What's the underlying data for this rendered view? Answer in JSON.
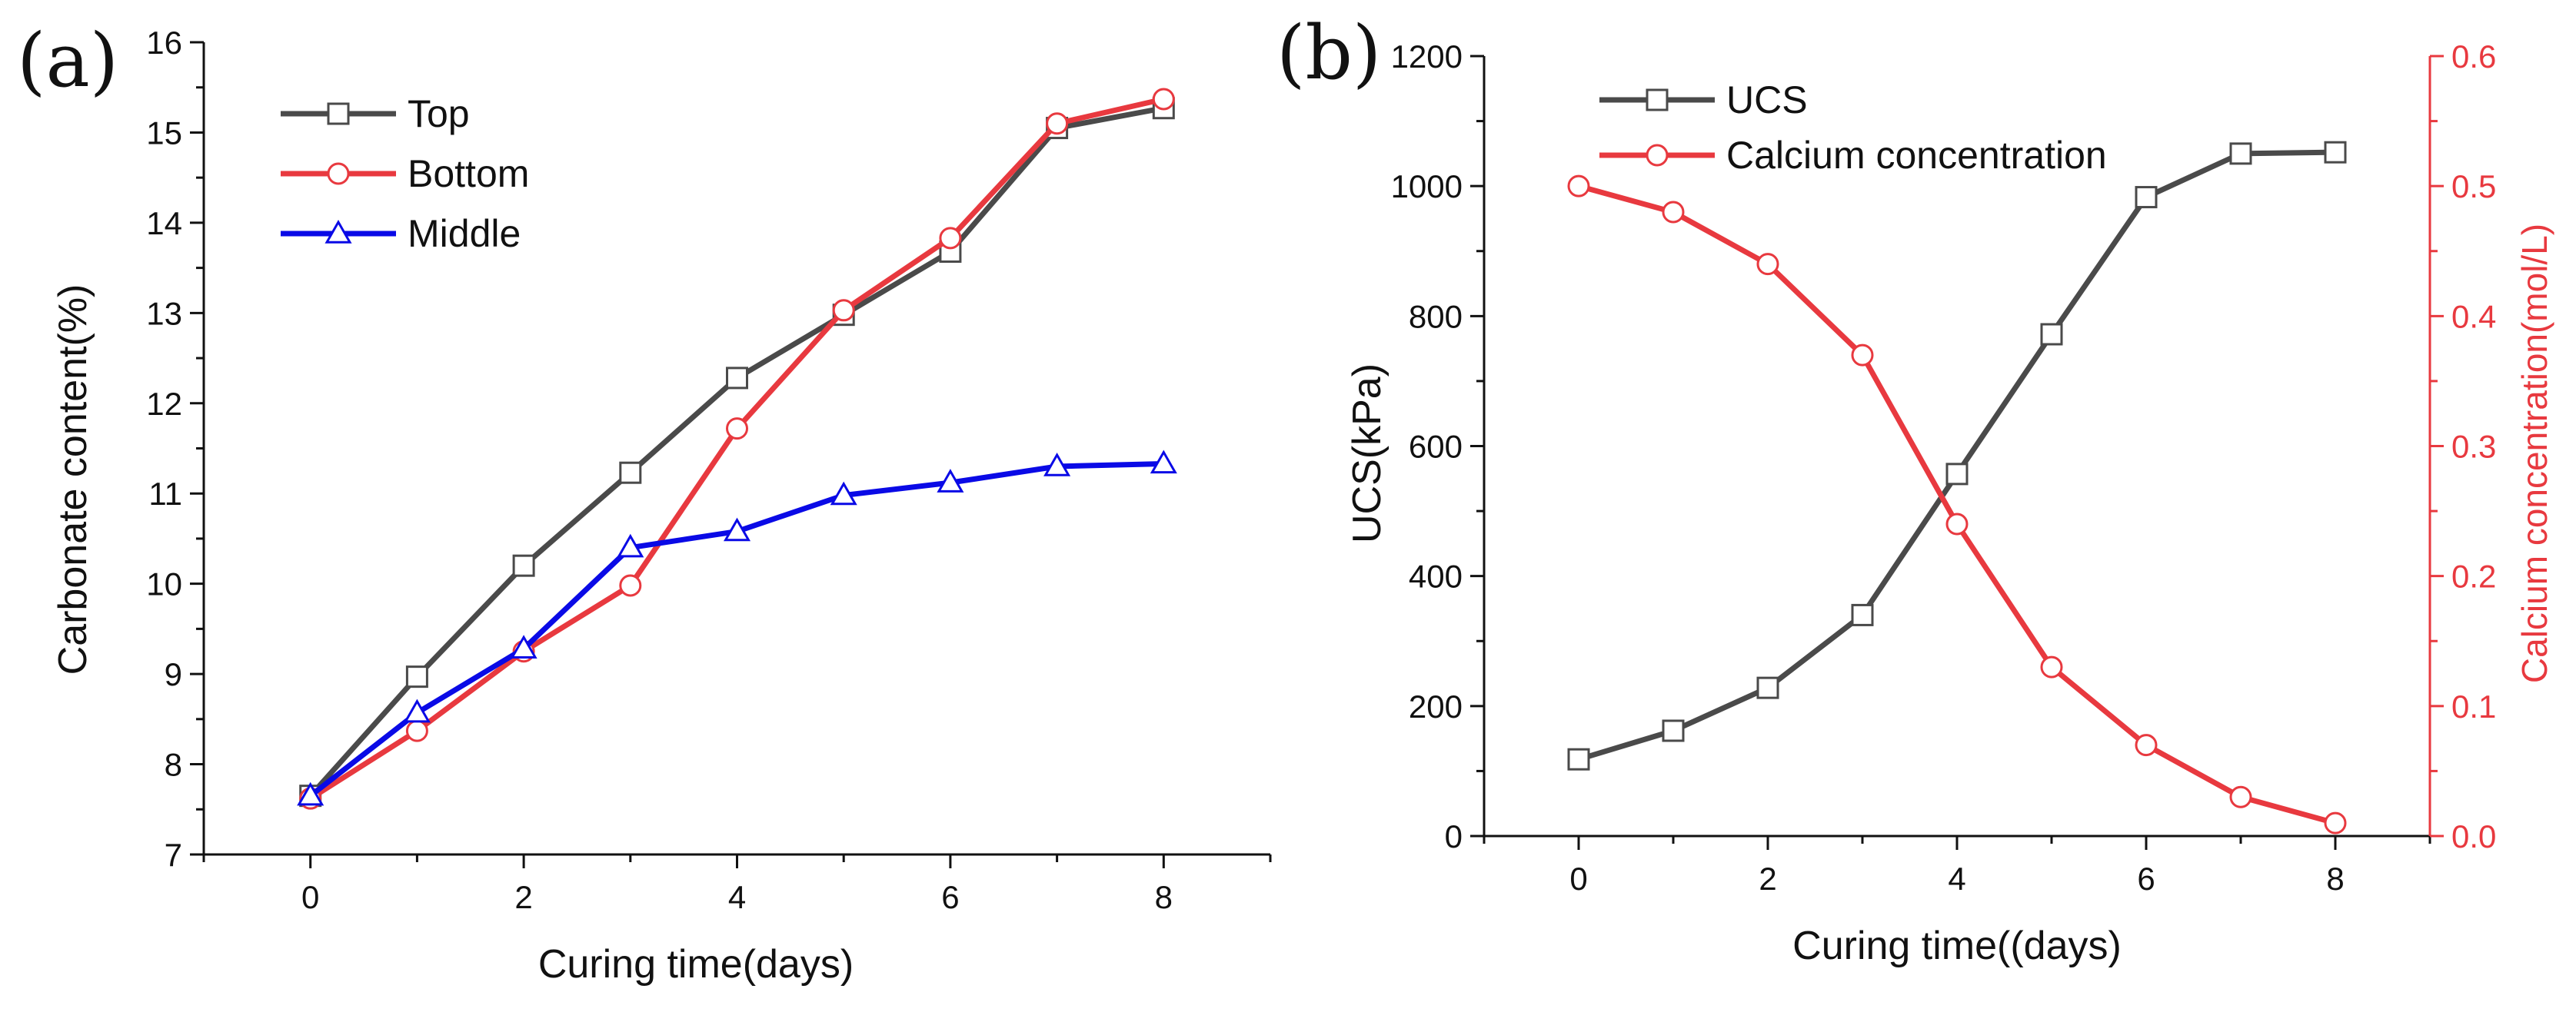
{
  "colors": {
    "top": "#4a4a4a",
    "bottom": "#e8393f",
    "middle": "#0a0ae6",
    "ucs": "#4a4a4a",
    "calcium": "#e8393f",
    "axis": "#111111",
    "right_axis": "#e8393f"
  },
  "chart_data": [
    {
      "id": "a",
      "panel_label": "(a)",
      "type": "line",
      "xlabel": "Curing time(days)",
      "ylabel": "Carbonate content(%)",
      "xlim": [
        -1,
        9
      ],
      "ylim": [
        7,
        16
      ],
      "xticks": [
        0,
        2,
        4,
        6,
        8
      ],
      "yticks": [
        7,
        8,
        9,
        10,
        11,
        12,
        13,
        14,
        15,
        16
      ],
      "legend_position": "top-left",
      "series": [
        {
          "name": "Top",
          "marker": "square",
          "color_key": "top",
          "x": [
            0,
            1,
            2,
            3,
            4,
            5,
            6,
            7,
            8
          ],
          "values": [
            7.65,
            8.97,
            10.2,
            11.23,
            12.28,
            12.98,
            13.68,
            15.05,
            15.27
          ]
        },
        {
          "name": "Bottom",
          "marker": "circle",
          "color_key": "bottom",
          "x": [
            0,
            1,
            2,
            3,
            4,
            5,
            6,
            7,
            8
          ],
          "values": [
            7.62,
            8.37,
            9.25,
            9.98,
            11.72,
            13.03,
            13.83,
            15.1,
            15.37
          ]
        },
        {
          "name": "Middle",
          "marker": "triangle",
          "color_key": "middle",
          "x": [
            0,
            1,
            2,
            3,
            4,
            5,
            6,
            7,
            8
          ],
          "values": [
            7.65,
            8.57,
            9.28,
            10.4,
            10.58,
            10.98,
            11.12,
            11.3,
            11.33
          ]
        }
      ]
    },
    {
      "id": "b",
      "panel_label": "(b)",
      "type": "line",
      "xlabel": "Curing time((days)",
      "ylabel": "UCS(kPa)",
      "y2label": "Calcium concentration(mol/L)",
      "xlim": [
        -1,
        9
      ],
      "ylim": [
        0,
        1200
      ],
      "y2lim": [
        0,
        0.6
      ],
      "xticks": [
        0,
        2,
        4,
        6,
        8
      ],
      "yticks": [
        0,
        200,
        400,
        600,
        800,
        1000,
        1200
      ],
      "y2ticks": [
        0.0,
        0.1,
        0.2,
        0.3,
        0.4,
        0.5,
        0.6
      ],
      "y2tick_labels": [
        "0.0",
        "0.1",
        "0.2",
        "0.3",
        "0.4",
        "0.5",
        "0.6"
      ],
      "legend_position": "top-left",
      "series": [
        {
          "name": "UCS",
          "marker": "square",
          "axis": "left",
          "color_key": "ucs",
          "x": [
            0,
            1,
            2,
            3,
            4,
            5,
            6,
            7,
            8
          ],
          "values": [
            118,
            162,
            228,
            340,
            557,
            772,
            983,
            1050,
            1052
          ]
        },
        {
          "name": "Calcium concentration",
          "marker": "circle",
          "axis": "right",
          "color_key": "calcium",
          "x": [
            0,
            1,
            2,
            3,
            4,
            5,
            6,
            7,
            8
          ],
          "values": [
            0.5,
            0.48,
            0.44,
            0.37,
            0.24,
            0.13,
            0.07,
            0.03,
            0.01
          ]
        }
      ]
    }
  ]
}
